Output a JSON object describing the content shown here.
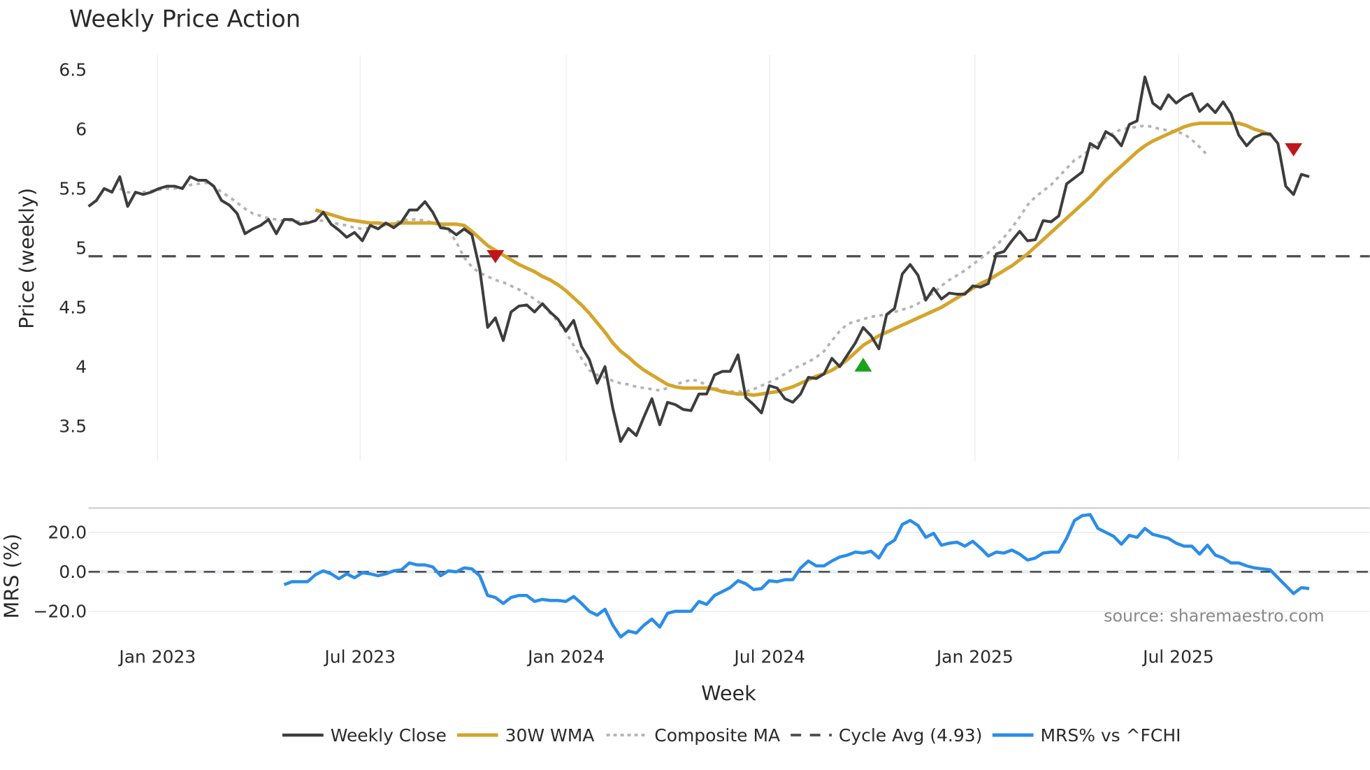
{
  "title": "Weekly Price Action",
  "source_note": "source: sharemaestro.com",
  "colors": {
    "close": "#3d3d3d",
    "wma": "#d4a52c",
    "composite": "#b4b4b4",
    "cycle": "#4d4d4d",
    "mrs": "#2b8de8",
    "sell": "#c0161b",
    "buy": "#1aa31a"
  },
  "price_panel": {
    "ylabel": "Price (weekly)",
    "yticks": [
      "6.5",
      "6",
      "5.5",
      "5",
      "4.5",
      "4",
      "3.5"
    ]
  },
  "mrs_panel": {
    "ylabel": "MRS (%)",
    "yticks": [
      "20.0",
      "0.0",
      "−20.0"
    ]
  },
  "xaxis": {
    "label": "Week",
    "ticks": [
      "Jan 2023",
      "Jul 2023",
      "Jan 2024",
      "Jul 2024",
      "Jan 2025",
      "Jul 2025"
    ]
  },
  "legend": [
    {
      "label": "Weekly Close",
      "style": "solid-dark"
    },
    {
      "label": "30W WMA",
      "style": "solid-gold"
    },
    {
      "label": "Composite MA",
      "style": "dotted-grey"
    },
    {
      "label": "Cycle Avg (4.93)",
      "style": "dashed-dark"
    },
    {
      "label": "MRS% vs ^FCHI",
      "style": "solid-blue"
    }
  ],
  "chart_data": [
    {
      "type": "line",
      "title": "Weekly Price Action",
      "xlabel": "Week",
      "ylabel": "Price (weekly)",
      "ylim": [
        3.2,
        6.6
      ],
      "x_tick_labels": [
        "Jan 2023",
        "Jul 2023",
        "Jan 2024",
        "Jul 2024",
        "Jan 2025",
        "Jul 2025"
      ],
      "grid": true,
      "legend_position": "bottom",
      "x_start": "2022-11 (weekly)",
      "series": [
        {
          "name": "Weekly Close",
          "start_index": 0,
          "values": [
            5.35,
            5.4,
            5.5,
            5.47,
            5.6,
            5.35,
            5.47,
            5.45,
            5.47,
            5.5,
            5.52,
            5.52,
            5.5,
            5.6,
            5.57,
            5.57,
            5.52,
            5.4,
            5.36,
            5.29,
            5.12,
            5.16,
            5.19,
            5.24,
            5.12,
            5.24,
            5.24,
            5.2,
            5.21,
            5.23,
            5.3,
            5.2,
            5.15,
            5.09,
            5.13,
            5.06,
            5.19,
            5.16,
            5.21,
            5.17,
            5.22,
            5.32,
            5.32,
            5.39,
            5.3,
            5.17,
            5.16,
            5.11,
            5.16,
            5.11,
            4.82,
            4.33,
            4.41,
            4.22,
            4.46,
            4.51,
            4.52,
            4.46,
            4.53,
            4.46,
            4.4,
            4.3,
            4.39,
            4.17,
            4.06,
            3.86,
            4.0,
            3.65,
            3.37,
            3.48,
            3.42,
            3.58,
            3.73,
            3.51,
            3.7,
            3.68,
            3.64,
            3.63,
            3.77,
            3.77,
            3.93,
            3.96,
            3.96,
            4.1,
            3.74,
            3.68,
            3.61,
            3.84,
            3.82,
            3.73,
            3.7,
            3.77,
            3.91,
            3.9,
            3.94,
            4.07,
            4.0,
            4.1,
            4.2,
            4.33,
            4.26,
            4.15,
            4.44,
            4.49,
            4.78,
            4.86,
            4.77,
            4.56,
            4.66,
            4.57,
            4.62,
            4.61,
            4.61,
            4.68,
            4.67,
            4.7,
            4.95,
            4.97,
            5.06,
            5.14,
            5.06,
            5.07,
            5.23,
            5.22,
            5.27,
            5.54,
            5.59,
            5.64,
            5.88,
            5.84,
            5.98,
            5.94,
            5.86,
            6.04,
            6.07,
            6.44,
            6.22,
            6.17,
            6.29,
            6.22,
            6.27,
            6.3,
            6.15,
            6.21,
            6.14,
            6.23,
            6.13,
            5.95,
            5.86,
            5.93,
            5.96,
            5.96,
            5.88,
            5.52,
            5.45,
            5.62,
            5.6
          ]
        },
        {
          "name": "30W WMA",
          "start_index": 29,
          "values": [
            5.32,
            5.3,
            5.28,
            5.26,
            5.24,
            5.23,
            5.22,
            5.21,
            5.21,
            5.2,
            5.2,
            5.21,
            5.21,
            5.21,
            5.21,
            5.21,
            5.2,
            5.2,
            5.2,
            5.19,
            5.14,
            5.08,
            5.02,
            4.98,
            4.94,
            4.9,
            4.86,
            4.83,
            4.8,
            4.76,
            4.73,
            4.69,
            4.64,
            4.58,
            4.52,
            4.45,
            4.37,
            4.29,
            4.2,
            4.13,
            4.08,
            4.02,
            3.97,
            3.93,
            3.89,
            3.85,
            3.83,
            3.82,
            3.82,
            3.82,
            3.82,
            3.81,
            3.79,
            3.78,
            3.77,
            3.77,
            3.76,
            3.77,
            3.78,
            3.79,
            3.81,
            3.83,
            3.86,
            3.89,
            3.92,
            3.94,
            3.97,
            4.01,
            4.06,
            4.12,
            4.18,
            4.22,
            4.26,
            4.29,
            4.32,
            4.35,
            4.38,
            4.41,
            4.44,
            4.47,
            4.5,
            4.54,
            4.58,
            4.62,
            4.66,
            4.7,
            4.73,
            4.77,
            4.81,
            4.85,
            4.9,
            4.95,
            5.01,
            5.07,
            5.13,
            5.19,
            5.25,
            5.31,
            5.37,
            5.43,
            5.5,
            5.57,
            5.63,
            5.69,
            5.75,
            5.81,
            5.86,
            5.9,
            5.93,
            5.96,
            5.99,
            6.02,
            6.04,
            6.05,
            6.05,
            6.05,
            6.05,
            6.05,
            6.05,
            6.03,
            6.0,
            5.98,
            5.95
          ]
        },
        {
          "name": "Composite MA",
          "start_index": 4,
          "values": [
            5.5,
            5.47,
            5.46,
            5.47,
            5.48,
            5.49,
            5.5,
            5.5,
            5.51,
            5.53,
            5.54,
            5.55,
            5.52,
            5.47,
            5.43,
            5.38,
            5.33,
            5.29,
            5.27,
            5.25,
            5.24,
            5.23,
            5.23,
            5.22,
            5.22,
            5.23,
            5.23,
            5.22,
            5.2,
            5.19,
            5.17,
            5.16,
            5.17,
            5.18,
            5.19,
            5.21,
            5.23,
            5.24,
            5.24,
            5.23,
            5.21,
            5.2,
            5.15,
            5.05,
            4.92,
            4.84,
            4.79,
            4.76,
            4.73,
            4.71,
            4.68,
            4.65,
            4.61,
            4.57,
            4.52,
            4.45,
            4.38,
            4.29,
            4.18,
            4.07,
            3.97,
            3.93,
            3.91,
            3.88,
            3.86,
            3.85,
            3.83,
            3.82,
            3.81,
            3.8,
            3.82,
            3.85,
            3.87,
            3.89,
            3.88,
            3.84,
            3.82,
            3.8,
            3.79,
            3.79,
            3.79,
            3.81,
            3.84,
            3.87,
            3.9,
            3.94,
            3.98,
            4.01,
            4.04,
            4.08,
            4.13,
            4.22,
            4.3,
            4.36,
            4.38,
            4.4,
            4.42,
            4.43,
            4.44,
            4.46,
            4.48,
            4.5,
            4.53,
            4.58,
            4.62,
            4.68,
            4.73,
            4.77,
            4.81,
            4.86,
            4.91,
            4.96,
            5.02,
            5.09,
            5.17,
            5.26,
            5.36,
            5.43,
            5.48,
            5.53,
            5.6,
            5.67,
            5.74,
            5.78,
            5.83,
            5.88,
            5.93,
            5.97,
            6.0,
            6.01,
            6.02,
            6.03,
            6.02,
            6.0,
            5.99,
            5.98,
            5.96,
            5.91,
            5.85,
            5.78
          ]
        },
        {
          "name": "Cycle Avg (4.93)",
          "constant": 4.93
        }
      ],
      "markers": [
        {
          "type": "sell",
          "shape": "triangle-down",
          "index": 52,
          "value": 4.93
        },
        {
          "type": "buy",
          "shape": "triangle-up",
          "index": 99,
          "value": 4.01
        },
        {
          "type": "sell",
          "shape": "triangle-down",
          "index": 154,
          "value": 5.83
        }
      ]
    },
    {
      "type": "line",
      "title": "",
      "xlabel": "Week",
      "ylabel": "MRS (%)",
      "ylim": [
        -36,
        34
      ],
      "grid": true,
      "series": [
        {
          "name": "MRS% vs ^FCHI",
          "start_index": 25,
          "values": [
            -6.5,
            -5,
            -5,
            -5,
            -1.5,
            0.5,
            -1,
            -3.5,
            -1,
            -3,
            -0.5,
            -1,
            -2,
            -1,
            0.5,
            1,
            4.5,
            3.5,
            3.5,
            2.5,
            -2,
            0.5,
            0,
            2,
            1.5,
            -2,
            -12,
            -13,
            -16,
            -13,
            -12,
            -12,
            -15,
            -14,
            -14.5,
            -14.5,
            -15,
            -12.5,
            -16,
            -20,
            -22,
            -19,
            -27,
            -33,
            -30,
            -31,
            -27,
            -24,
            -28,
            -21,
            -20,
            -20,
            -20,
            -15,
            -16.5,
            -12,
            -10,
            -8,
            -4.5,
            -6,
            -9,
            -8.5,
            -4.5,
            -5,
            -4,
            -4,
            2,
            5.5,
            3,
            3,
            5.5,
            7.5,
            8.5,
            10,
            9.5,
            10.5,
            7,
            13.5,
            16,
            24,
            26,
            23.5,
            17.5,
            19.5,
            13.5,
            14.5,
            15,
            13,
            15.5,
            12,
            8,
            10,
            9.5,
            11,
            9,
            6,
            7,
            9.5,
            10,
            10,
            17,
            26,
            28.5,
            29,
            22,
            20,
            18,
            14,
            18.5,
            17.5,
            22,
            19,
            18,
            17,
            14.5,
            13,
            13,
            9,
            13.5,
            8.5,
            7,
            4.5,
            4.5,
            3,
            2,
            1.5,
            1,
            -3,
            -7,
            -11,
            -8,
            -8.5
          ]
        }
      ],
      "reference_lines": [
        {
          "value": 0,
          "style": "dashed"
        }
      ]
    }
  ]
}
